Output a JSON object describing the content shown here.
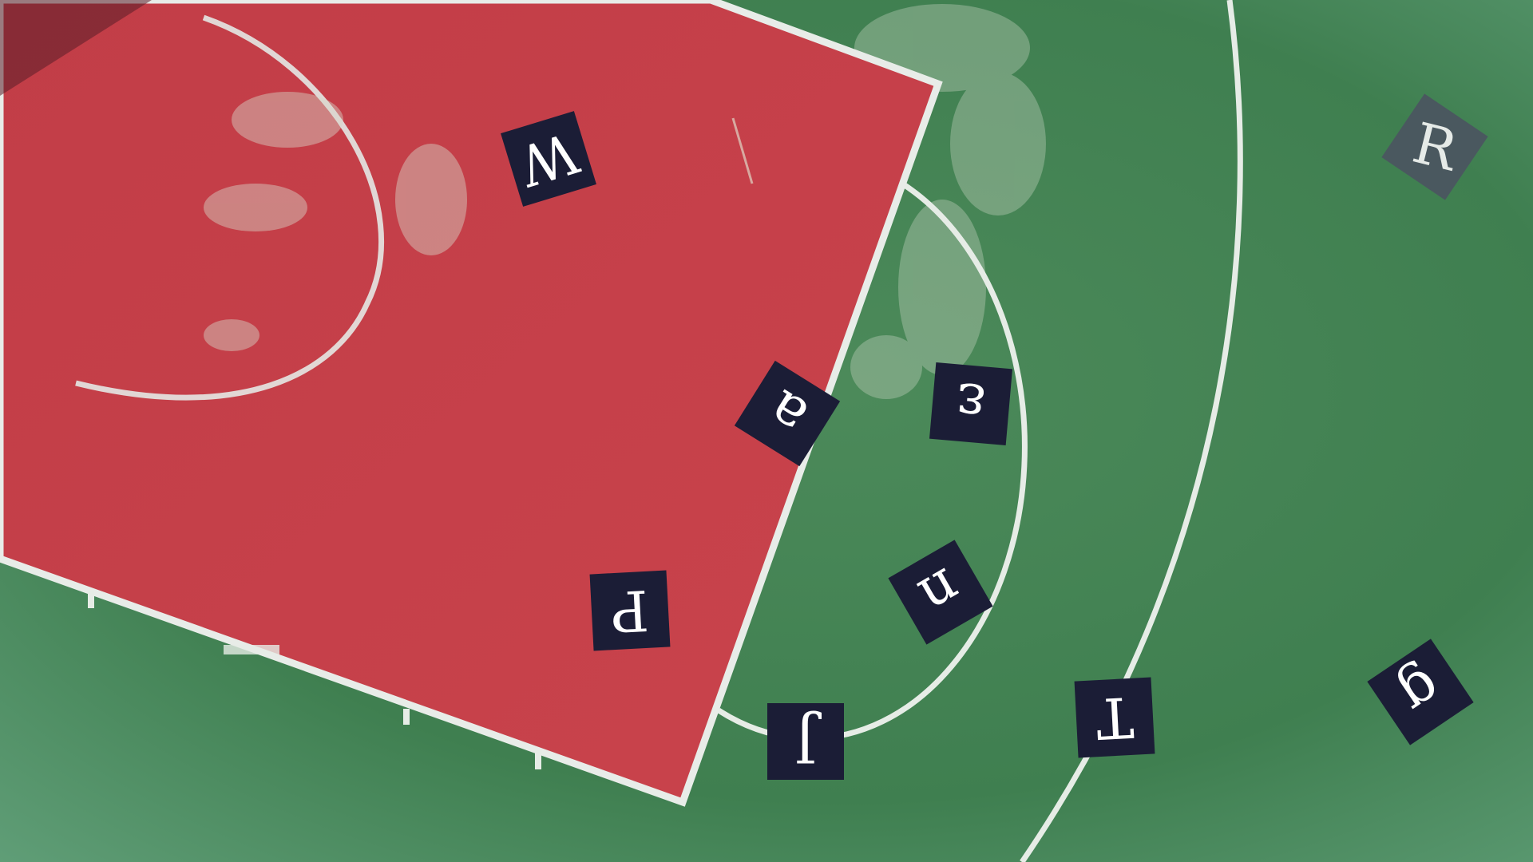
{
  "scene": {
    "description_label": "Aerial view of a basketball court with letter tiles",
    "court_colors": {
      "paint": "#c5404a",
      "field": "#3f7f4f",
      "lines": "#e6ece6",
      "tile": "#1b1d36"
    }
  },
  "tiles": [
    {
      "letter": "W"
    },
    {
      "letter": "a"
    },
    {
      "letter": "ε"
    },
    {
      "letter": "P"
    },
    {
      "letter": "n"
    },
    {
      "letter": "J"
    },
    {
      "letter": "T"
    },
    {
      "letter": "R"
    },
    {
      "letter": "g"
    }
  ]
}
